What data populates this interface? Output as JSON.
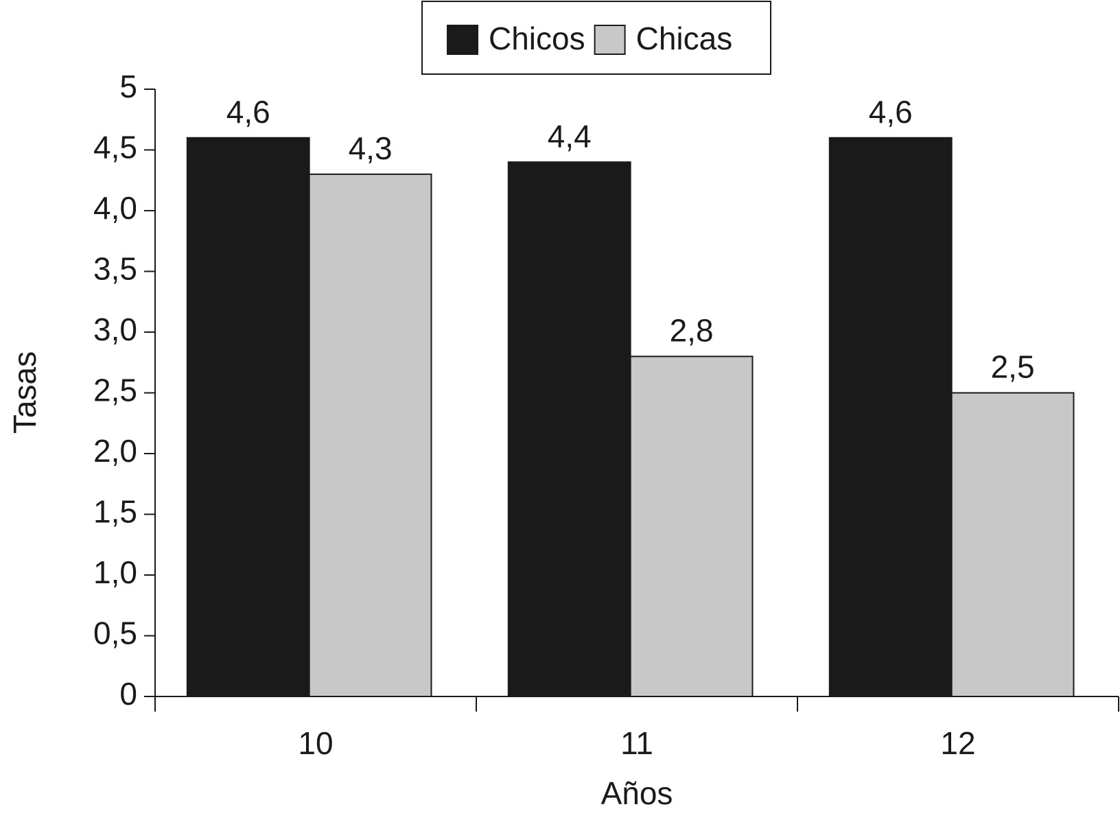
{
  "chart_data": {
    "type": "bar",
    "x_label": "Años",
    "y_label": "Tasas",
    "categories": [
      "10",
      "11",
      "12"
    ],
    "series": [
      {
        "name": "Chicos",
        "color": "#1a1a1a",
        "values": [
          4.6,
          4.4,
          4.6
        ],
        "value_labels": [
          "4,6",
          "4,4",
          "4,6"
        ]
      },
      {
        "name": "Chicas",
        "color": "#c8c8c8",
        "values": [
          4.3,
          2.8,
          2.5
        ],
        "value_labels": [
          "4,3",
          "2,8",
          "2,5"
        ]
      }
    ],
    "ylim": [
      0,
      5
    ],
    "yticks": [
      0,
      {
        "value": 0.5,
        "label": "0,5"
      },
      {
        "value": 1,
        "label": "1,0"
      },
      {
        "value": 1.5,
        "label": "1,5"
      },
      {
        "value": 2,
        "label": "2,0"
      },
      {
        "value": 2.5,
        "label": "2,5"
      },
      {
        "value": 3,
        "label": "3,0"
      },
      {
        "value": 3.5,
        "label": "3,5"
      },
      {
        "value": 4,
        "label": "4,0"
      },
      {
        "value": 4.5,
        "label": "4,5"
      },
      5
    ],
    "grid": false
  }
}
